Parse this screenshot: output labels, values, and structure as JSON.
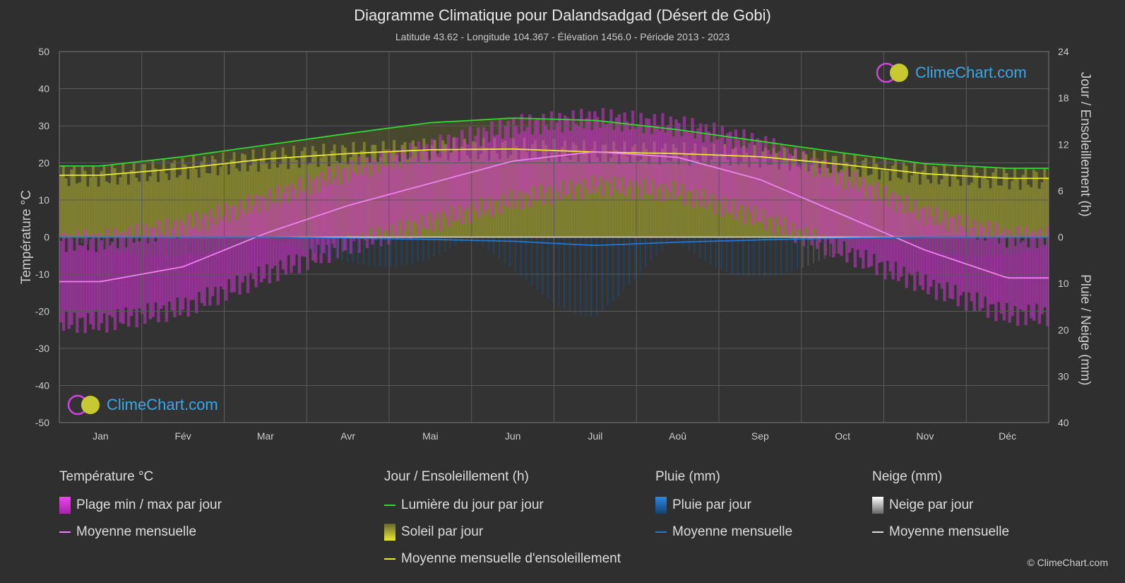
{
  "title": "Diagramme Climatique pour Dalandsadgad (Désert de Gobi)",
  "subtitle": "Latitude 43.62 - Longitude 104.367 - Élévation 1456.0 - Période 2013 - 2023",
  "brand": "ClimeChart.com",
  "copyright": "© ClimeChart.com",
  "colors": {
    "background": "#2f2f2f",
    "daylight": "#33d633",
    "sunshine_mean": "#e8e830",
    "temp_mean": "#ee82ee",
    "temp_range": "#cc33cc",
    "rain": "#1e78d0",
    "snow": "#cccccc"
  },
  "legend": {
    "temperature": {
      "header": "Température °C",
      "range_label": "Plage min / max par jour",
      "mean_label": "Moyenne mensuelle"
    },
    "sun": {
      "header": "Jour / Ensoleillement (h)",
      "daylight_label": "Lumière du jour par jour",
      "sunshine_label": "Soleil par jour",
      "sun_mean_label": "Moyenne mensuelle d'ensoleillement"
    },
    "rain": {
      "header": "Pluie (mm)",
      "daily_label": "Pluie par jour",
      "mean_label": "Moyenne mensuelle"
    },
    "snow": {
      "header": "Neige (mm)",
      "daily_label": "Neige par jour",
      "mean_label": "Moyenne mensuelle"
    }
  },
  "chart_data": {
    "type": "area",
    "categories": [
      "Jan",
      "Fév",
      "Mar",
      "Avr",
      "Mai",
      "Jun",
      "Juil",
      "Aoû",
      "Sep",
      "Oct",
      "Nov",
      "Déc"
    ],
    "y_left": {
      "label": "Température °C",
      "ticks": [
        50,
        40,
        30,
        20,
        10,
        0,
        -10,
        -20,
        -30,
        -40,
        -50
      ],
      "range": [
        -50,
        50
      ]
    },
    "y_right_top": {
      "label": "Jour / Ensoleillement (h)",
      "ticks": [
        24,
        18,
        12,
        6,
        0
      ],
      "range": [
        0,
        24
      ]
    },
    "y_right_bottom": {
      "label": "Pluie / Neige (mm)",
      "ticks": [
        0,
        10,
        20,
        30,
        40
      ],
      "range": [
        0,
        40
      ]
    },
    "grid": true,
    "series": [
      {
        "name": "Lumière du jour par jour",
        "unit": "h",
        "values": [
          9.2,
          10.4,
          11.9,
          13.4,
          14.8,
          15.4,
          15.1,
          13.9,
          12.4,
          10.9,
          9.5,
          8.9
        ]
      },
      {
        "name": "Moyenne mensuelle d'ensoleillement",
        "unit": "h",
        "values": [
          8.0,
          8.9,
          10.1,
          10.8,
          11.3,
          11.4,
          11.0,
          10.8,
          10.4,
          9.4,
          8.2,
          7.6
        ]
      },
      {
        "name": "Moyenne mensuelle",
        "unit": "°C",
        "values": [
          -12,
          -8,
          1,
          8.5,
          14.5,
          20.5,
          23,
          21.5,
          15.5,
          6,
          -3.5,
          -11
        ]
      },
      {
        "name": "Pluie moyenne mensuelle",
        "unit": "mm",
        "values": [
          0,
          0,
          0,
          0.2,
          0.5,
          0.9,
          1.8,
          1.1,
          0.6,
          0.2,
          0,
          0
        ]
      },
      {
        "name": "Neige moyenne mensuelle",
        "unit": "mm",
        "values": [
          0,
          0,
          0,
          0,
          0,
          0,
          0,
          0,
          0,
          0,
          0,
          0
        ]
      }
    ],
    "temp_range": {
      "max": [
        -4,
        0,
        7,
        15,
        21,
        27,
        29,
        27,
        22,
        13,
        3,
        -3
      ],
      "min": [
        -20,
        -16,
        -7,
        1,
        7,
        13,
        17,
        15,
        8,
        -1,
        -10,
        -18
      ]
    }
  }
}
